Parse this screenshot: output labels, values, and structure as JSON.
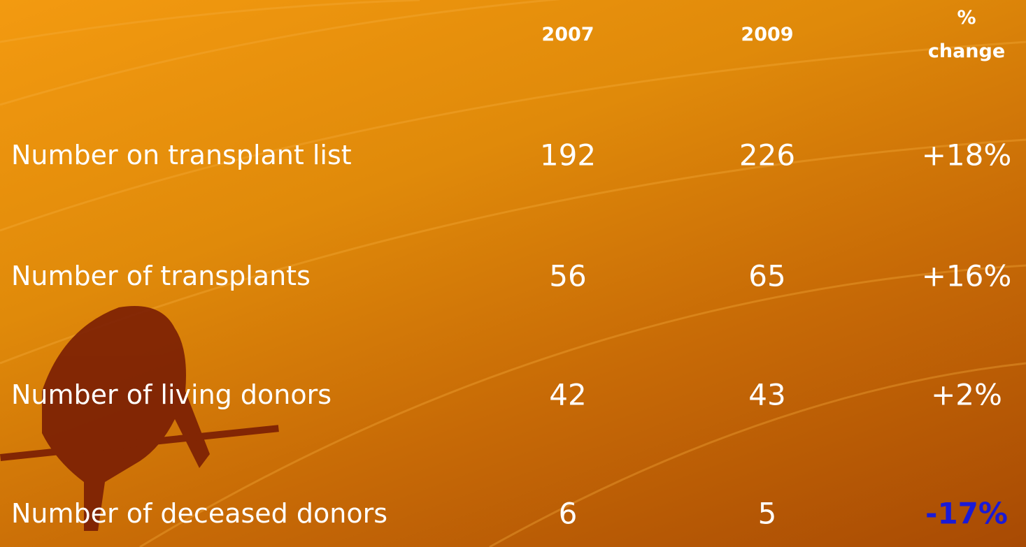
{
  "table": {
    "columns": [
      "2007",
      "2009",
      "% change"
    ],
    "rows": [
      {
        "label": "Number on transplant list",
        "cells": [
          "192",
          "226",
          "+18%"
        ]
      },
      {
        "label": "Number of transplants",
        "cells": [
          "56",
          "65",
          "+16%"
        ]
      },
      {
        "label": "Number of living donors",
        "cells": [
          "42",
          "43",
          "+2%"
        ]
      },
      {
        "label": "Number of deceased donors",
        "cells": [
          "6",
          "5",
          "-17%"
        ]
      }
    ]
  }
}
